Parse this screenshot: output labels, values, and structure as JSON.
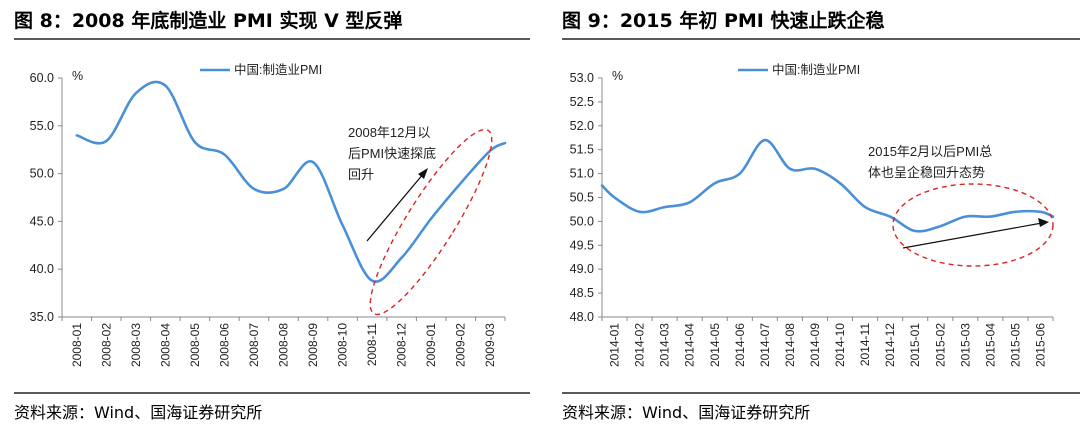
{
  "left": {
    "title": "图 8：2008 年底制造业 PMI 实现 V 型反弹",
    "source": "资料来源：Wind、国海证券研究所",
    "annotation_lines": [
      "2008年12月以",
      "后PMI快速探底",
      "回升"
    ],
    "chart_data": {
      "type": "line",
      "title": "图 8：2008 年底制造业 PMI 实现 V 型反弹",
      "ylabel": "%",
      "ylim": [
        35,
        60
      ],
      "yticks": [
        "35.0",
        "40.0",
        "45.0",
        "50.0",
        "55.0",
        "60.0"
      ],
      "categories": [
        "2008-01",
        "2008-02",
        "2008-03",
        "2008-04",
        "2008-05",
        "2008-06",
        "2008-07",
        "2008-08",
        "2008-09",
        "2008-10",
        "2008-11",
        "2008-12",
        "2009-01",
        "2009-02",
        "2009-03"
      ],
      "series": [
        {
          "name": "中国:制造业PMI",
          "color": "#4a90d9",
          "values": [
            54.0,
            53.4,
            58.4,
            59.2,
            53.3,
            52.0,
            48.4,
            48.4,
            51.2,
            44.6,
            38.8,
            41.2,
            45.3,
            49.0,
            52.4
          ]
        }
      ],
      "x_end_value": 53.2,
      "legend": "top-left"
    }
  },
  "right": {
    "title": "图 9：2015 年初 PMI 快速止跌企稳",
    "source": "资料来源：Wind、国海证券研究所",
    "annotation_lines": [
      "2015年2月以后PMI总",
      "体也呈企稳回升态势"
    ],
    "chart_data": {
      "type": "line",
      "title": "图 9：2015 年初 PMI 快速止跌企稳",
      "ylabel": "%",
      "ylim": [
        48,
        53
      ],
      "yticks": [
        "48.0",
        "48.5",
        "49.0",
        "49.5",
        "50.0",
        "50.5",
        "51.0",
        "51.5",
        "52.0",
        "52.5",
        "53.0"
      ],
      "categories": [
        "2014-01",
        "2014-02",
        "2014-03",
        "2014-04",
        "2014-05",
        "2014-06",
        "2014-07",
        "2014-08",
        "2014-09",
        "2014-10",
        "2014-11",
        "2014-12",
        "2015-01",
        "2015-02",
        "2015-03",
        "2015-04",
        "2015-05",
        "2015-06"
      ],
      "series": [
        {
          "name": "中国:制造业PMI",
          "color": "#4a90d9",
          "values": [
            50.5,
            50.2,
            50.3,
            50.4,
            50.8,
            51.0,
            51.7,
            51.1,
            51.1,
            50.8,
            50.3,
            50.1,
            49.8,
            49.9,
            50.1,
            50.1,
            50.2,
            50.2
          ]
        }
      ],
      "x_start_value": 50.75,
      "x_end_value": 50.1,
      "legend": "top-left"
    }
  }
}
